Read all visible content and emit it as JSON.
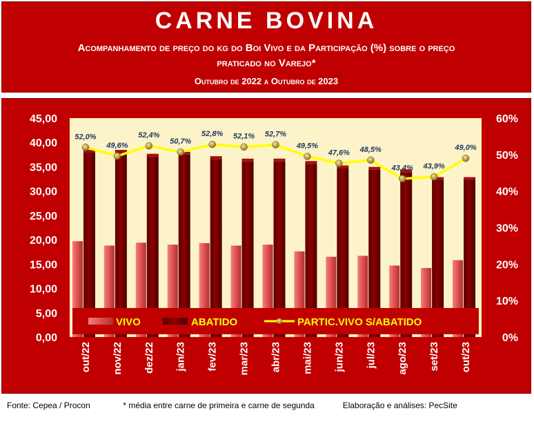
{
  "header": {
    "title": "CARNE BOVINA",
    "subtitle_line1": "Acompanhamento de preço do kg do Boi Vivo e da Participação (%) sobre o preço",
    "subtitle_line2": "praticado no Varejo*",
    "period": "Outubro de 2022 a Outubro de 2023"
  },
  "footer": {
    "source": "Fonte: Cepea / Procon",
    "note": "* média entre carne de primeira e carne de segunda",
    "credit": "Elaboração e análises: PecSite"
  },
  "colors": {
    "background": "#c00000",
    "plot_area": "#fdf3c8",
    "vivo": "#e05050",
    "abatido": "#8b0000",
    "partic_line": "#ffff00",
    "partic_marker": "#c8a030"
  },
  "chart_data": {
    "type": "bar",
    "categories": [
      "out/22",
      "nov/22",
      "dez/22",
      "jan/23",
      "fev/23",
      "mar/23",
      "abr/23",
      "mai/23",
      "jun/23",
      "jul/23",
      "ago/23",
      "set/23",
      "out/23"
    ],
    "series": [
      {
        "name": "VIVO",
        "type": "bar",
        "axis": "left",
        "values": [
          19.7,
          18.8,
          19.4,
          19.0,
          19.3,
          18.8,
          19.0,
          17.6,
          16.5,
          16.7,
          14.7,
          14.2,
          15.8
        ]
      },
      {
        "name": "ABATIDO",
        "type": "bar",
        "axis": "left",
        "values": [
          37.9,
          37.9,
          37.1,
          37.5,
          36.6,
          36.1,
          36.1,
          35.6,
          34.7,
          34.4,
          33.9,
          32.3,
          32.3
        ]
      },
      {
        "name": "PARTIC.VIVO S/ABATIDO",
        "type": "line",
        "axis": "right",
        "values": [
          52.0,
          49.6,
          52.4,
          50.7,
          52.8,
          52.1,
          52.7,
          49.5,
          47.6,
          48.5,
          43.4,
          43.9,
          49.0
        ],
        "labels": [
          "52,0%",
          "49,6%",
          "52,4%",
          "50,7%",
          "52,8%",
          "52,1%",
          "52,7%",
          "49,5%",
          "47,6%",
          "48,5%",
          "43,4%",
          "43,9%",
          "49,0%"
        ]
      }
    ],
    "y_left": {
      "ylim": [
        0,
        45
      ],
      "ticks": [
        "0,00",
        "5,00",
        "10,00",
        "15,00",
        "20,00",
        "25,00",
        "30,00",
        "35,00",
        "40,00",
        "45,00"
      ]
    },
    "y_right": {
      "ylim": [
        0,
        60
      ],
      "ticks": [
        "0%",
        "10%",
        "20%",
        "30%",
        "40%",
        "50%",
        "60%"
      ]
    },
    "legend": {
      "placement": "bottom-inside",
      "entries": [
        "VIVO",
        "ABATIDO",
        "PARTIC.VIVO S/ABATIDO"
      ]
    },
    "grid": false
  }
}
